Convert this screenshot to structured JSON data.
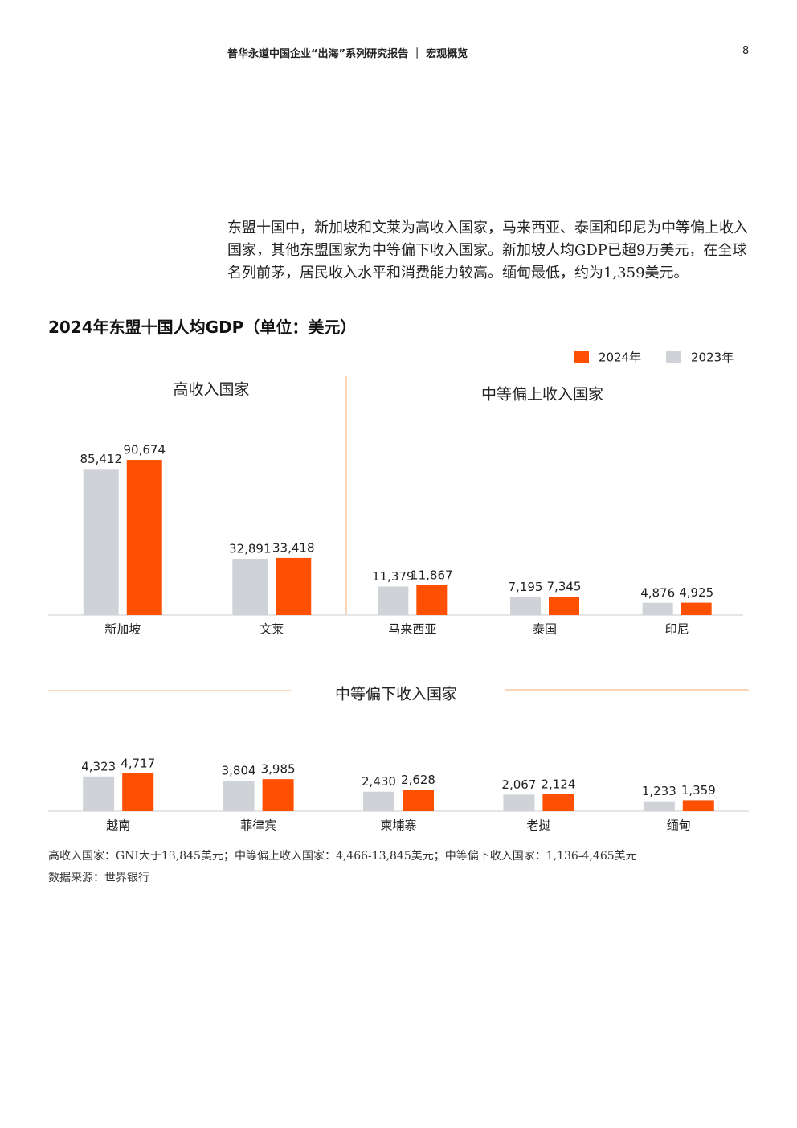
{
  "header": {
    "title": "普华永道中国企业“出海”系列研究报告 ｜ 宏观概览",
    "page": "8"
  },
  "paragraph": "东盟十国中，新加坡和文莱为高收入国家，马来西亚、泰国和印尼为中等偏上收入国家，其他东盟国家为中等偏下收入国家。新加坡人均GDP已超9万美元，在全球名列前茅，居民收入水平和消费能力较高。缅甸最低，约为1,359美元。",
  "figure_title": "2024年东盟十国人均GDP（单位：美元）",
  "chart_data": [
    {
      "type": "bar",
      "title": "高收入国家",
      "categories": [
        "新加坡",
        "文莱"
      ],
      "ylim": [
        0,
        94000
      ],
      "series": [
        {
          "name": "2024年",
          "color": "#fe5000",
          "values": [
            90674,
            33418
          ],
          "value_labels": [
            "90,674",
            "33,418"
          ]
        },
        {
          "name": "2023年",
          "color": "#cfd3d8",
          "values": [
            85412,
            32891
          ],
          "value_labels": [
            "85,412",
            "32,891"
          ]
        }
      ]
    },
    {
      "type": "bar",
      "title": "中等偏上收入国家",
      "categories": [
        "马来西亚",
        "泰国",
        "印尼"
      ],
      "ylim": [
        0,
        64000
      ],
      "series": [
        {
          "name": "2024年",
          "color": "#fe5000",
          "values": [
            11867,
            7345,
            4925
          ],
          "value_labels": [
            "11,867",
            "7,345",
            "4,925"
          ]
        },
        {
          "name": "2023年",
          "color": "#cfd3d8",
          "values": [
            11379,
            7195,
            4876
          ],
          "value_labels": [
            "11,379",
            "7,195",
            "4,876"
          ]
        }
      ]
    },
    {
      "type": "bar",
      "title": "中等偏下收入国家",
      "categories": [
        "越南",
        "菲律宾",
        "柬埔寨",
        "老挝",
        "缅甸"
      ],
      "ylim": [
        0,
        5000
      ],
      "series": [
        {
          "name": "2024年",
          "color": "#fe5000",
          "values": [
            4717,
            3985,
            2628,
            2124,
            1359
          ],
          "value_labels": [
            "4,717",
            "3,985",
            "2,628",
            "2,124",
            "1,359"
          ]
        },
        {
          "name": "2023年",
          "color": "#cfd3d8",
          "values": [
            4323,
            3804,
            2430,
            2067,
            1233
          ],
          "value_labels": [
            "4,323",
            "3,804",
            "2,430",
            "2,067",
            "1,233"
          ]
        }
      ]
    }
  ],
  "notes": [
    "高收入国家：GNI大于13,845美元；中等偏上收入国家：4,466-13,845美元；中等偏下收入国家：1,136-4,465美元",
    "数据来源：世界银行"
  ]
}
